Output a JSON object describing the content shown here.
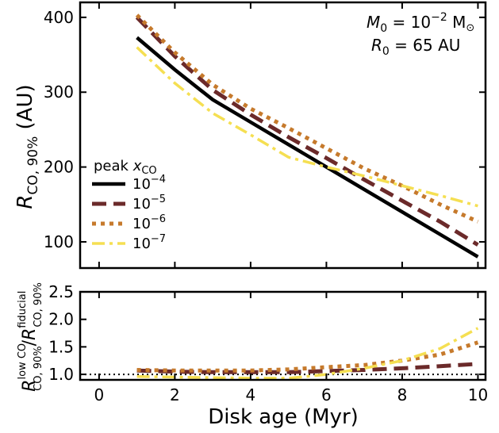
{
  "figure": {
    "xlabel": "Disk age (Myr)",
    "annotations": {
      "mass_lhs": "M",
      "mass_sub": "0",
      "mass_eq": " = 10",
      "mass_exp": "−2",
      "mass_unit": " M",
      "radius_lhs": "R",
      "radius_sub": "0",
      "radius_rest": " = 65 AU"
    },
    "legend": {
      "title_prefix": "peak ",
      "title_var": "x",
      "title_sub": "CO",
      "base": "10"
    }
  },
  "chart_data": [
    {
      "type": "line",
      "panel": "top",
      "ylabel": {
        "var": "R",
        "sub": "CO, 90%",
        "unit": " (AU)"
      },
      "xlim": [
        -0.5,
        10.2
      ],
      "ylim": [
        65,
        420
      ],
      "xticks": [
        0,
        2,
        4,
        6,
        8,
        10
      ],
      "yticks": [
        100,
        200,
        300,
        400
      ],
      "grid": false,
      "legend_placement": "lower-left",
      "x": [
        1,
        2,
        3,
        4,
        5,
        6,
        7,
        8,
        9,
        10
      ],
      "series": [
        {
          "name": "10^-4",
          "exp": "−4",
          "color": "#000000",
          "style": "solid",
          "values": [
            373,
            330,
            290,
            260,
            230,
            200,
            170,
            140,
            110,
            80
          ]
        },
        {
          "name": "10^-5",
          "exp": "−5",
          "color": "#6b2a2a",
          "style": "dashed",
          "values": [
            400,
            348,
            303,
            270,
            240,
            212,
            183,
            155,
            127,
            96
          ]
        },
        {
          "name": "10^-6",
          "exp": "−6",
          "color": "#c67a2c",
          "style": "dotted",
          "values": [
            403,
            353,
            310,
            278,
            252,
            225,
            198,
            175,
            150,
            127
          ]
        },
        {
          "name": "10^-7",
          "exp": "−7",
          "color": "#f5df52",
          "style": "dashdot",
          "values": [
            360,
            312,
            272,
            243,
            213,
            200,
            188,
            175,
            162,
            148
          ]
        }
      ]
    },
    {
      "type": "line",
      "panel": "bottom",
      "ylabel": {
        "var": "R",
        "sup_num": "low CO",
        "sub_num": "CO, 90%",
        "sup_den": "fiducial",
        "sub_den": "CO, 90%"
      },
      "xlim": [
        -0.5,
        10.2
      ],
      "ylim": [
        0.9,
        2.5
      ],
      "xticks": [
        0,
        2,
        4,
        6,
        8,
        10
      ],
      "yticks": [
        1.0,
        1.5,
        2.0,
        2.5
      ],
      "reference_line": {
        "y": 1.0,
        "style": "dotted",
        "color": "#000000"
      },
      "x": [
        1,
        2,
        3,
        4,
        5,
        6,
        7,
        8,
        9,
        10
      ],
      "series": [
        {
          "name": "10^-5",
          "color": "#6b2a2a",
          "style": "dashed",
          "values": [
            1.07,
            1.05,
            1.04,
            1.04,
            1.04,
            1.06,
            1.08,
            1.11,
            1.15,
            1.19
          ]
        },
        {
          "name": "10^-6",
          "color": "#c67a2c",
          "style": "dotted",
          "values": [
            1.08,
            1.07,
            1.07,
            1.07,
            1.09,
            1.13,
            1.17,
            1.25,
            1.36,
            1.58
          ]
        },
        {
          "name": "10^-7",
          "color": "#f5df52",
          "style": "dashdot",
          "values": [
            0.96,
            0.95,
            0.94,
            0.93,
            0.93,
            1.0,
            1.11,
            1.25,
            1.47,
            1.84
          ]
        }
      ]
    }
  ]
}
